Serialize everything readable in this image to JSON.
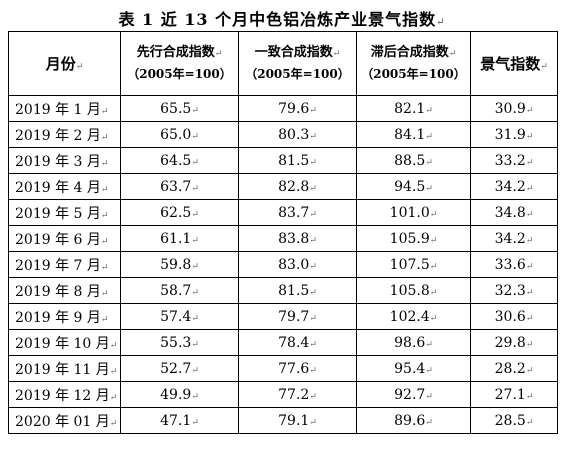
{
  "title": "表 1 近 13 个月中色铝冶炼产业景气指数",
  "header": {
    "month": "月份",
    "leading": "先行合成指数",
    "coincident": "一致合成指数",
    "lagging": "滞后合成指数",
    "base": "（2005年=100）",
    "climate": "景气指数"
  },
  "rows": [
    {
      "month": "2019 年 1 月",
      "leading": "65.5",
      "coincident": "79.6",
      "lagging": "82.1",
      "climate": "30.9"
    },
    {
      "month": "2019 年 2 月",
      "leading": "65.0",
      "coincident": "80.3",
      "lagging": "84.1",
      "climate": "31.9"
    },
    {
      "month": "2019 年 3 月",
      "leading": "64.5",
      "coincident": "81.5",
      "lagging": "88.5",
      "climate": "33.2"
    },
    {
      "month": "2019 年 4 月",
      "leading": "63.7",
      "coincident": "82.8",
      "lagging": "94.5",
      "climate": "34.2"
    },
    {
      "month": "2019 年 5 月",
      "leading": "62.5",
      "coincident": "83.7",
      "lagging": "101.0",
      "climate": "34.8"
    },
    {
      "month": "2019 年 6 月",
      "leading": "61.1",
      "coincident": "83.8",
      "lagging": "105.9",
      "climate": "34.2"
    },
    {
      "month": "2019 年 7 月",
      "leading": "59.8",
      "coincident": "83.0",
      "lagging": "107.5",
      "climate": "33.6"
    },
    {
      "month": "2019 年 8 月",
      "leading": "58.7",
      "coincident": "81.5",
      "lagging": "105.8",
      "climate": "32.3"
    },
    {
      "month": "2019 年 9 月",
      "leading": "57.4",
      "coincident": "79.7",
      "lagging": "102.4",
      "climate": "30.6"
    },
    {
      "month": "2019 年 10 月",
      "leading": "55.3",
      "coincident": "78.4",
      "lagging": "98.6",
      "climate": "29.8"
    },
    {
      "month": "2019 年 11 月",
      "leading": "52.7",
      "coincident": "77.6",
      "lagging": "95.4",
      "climate": "28.2"
    },
    {
      "month": "2019 年 12 月",
      "leading": "49.9",
      "coincident": "77.2",
      "lagging": "92.7",
      "climate": "27.1"
    },
    {
      "month": "2020 年 01 月",
      "leading": "47.1",
      "coincident": "79.1",
      "lagging": "89.6",
      "climate": "28.5"
    }
  ]
}
